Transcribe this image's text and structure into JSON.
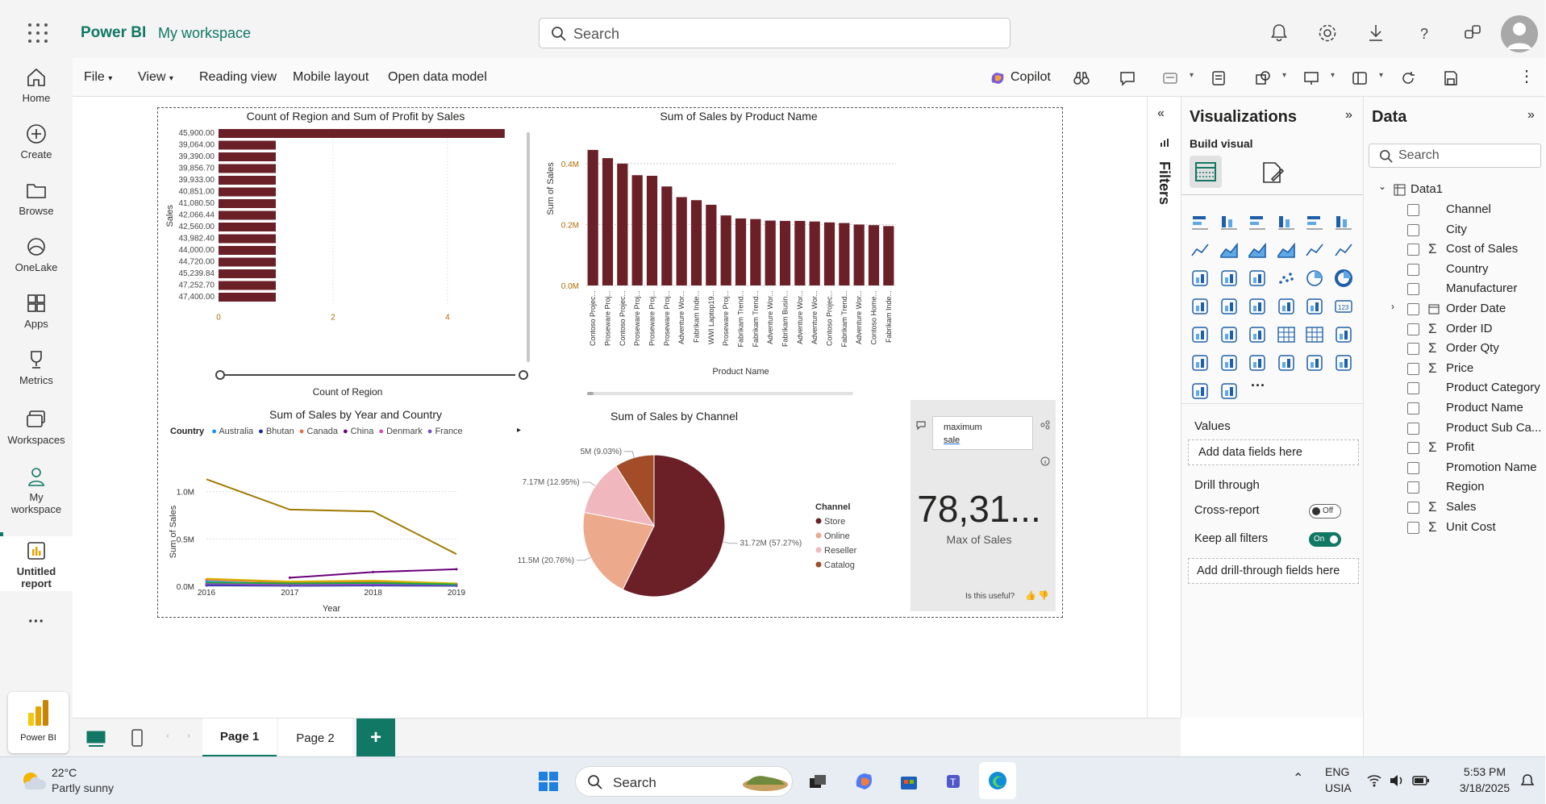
{
  "header": {
    "brand": "Power BI",
    "workspace": "My workspace",
    "search_placeholder": "Search"
  },
  "nav": [
    {
      "label": "Home",
      "icon": "home-icon"
    },
    {
      "label": "Create",
      "icon": "plus-circle-icon"
    },
    {
      "label": "Browse",
      "icon": "folder-icon"
    },
    {
      "label": "OneLake",
      "icon": "onelake-icon"
    },
    {
      "label": "Apps",
      "icon": "apps-icon"
    },
    {
      "label": "Metrics",
      "icon": "trophy-icon"
    },
    {
      "label": "Workspaces",
      "icon": "workspaces-icon"
    },
    {
      "label_line1": "My",
      "label_line2": "workspace",
      "icon": "person-icon"
    },
    {
      "label_line1": "Untitled",
      "label_line2": "report",
      "icon": "report-icon"
    }
  ],
  "nav_more": "···",
  "pbi_tile_label": "Power BI",
  "ribbon": {
    "file": "File",
    "view": "View",
    "reading": "Reading view",
    "mobile": "Mobile layout",
    "open_model": "Open data model",
    "copilot": "Copilot"
  },
  "charts": {
    "bar_region": {
      "title": "Count of Region and Sum of Profit by Sales",
      "xlabel": "Count of Region",
      "ylabel": "Sales",
      "x_ticks": [
        "0",
        "2",
        "4"
      ],
      "categories": [
        "45,900.00",
        "39,064.00",
        "39,390.00",
        "39,856.70",
        "39,933.00",
        "40,851.00",
        "41,080.50",
        "42,066.44",
        "42,560.00",
        "43,982.40",
        "44,000.00",
        "44,720.00",
        "45,239.84",
        "47,252.70",
        "47,400.00"
      ]
    },
    "product": {
      "title": "Sum of Sales by Product Name",
      "xlabel": "Product Name",
      "ylabel": "Sum of Sales",
      "y_ticks": [
        "0.4M",
        "0.2M",
        "0.0M"
      ],
      "categories": [
        "Contoso Projec...",
        "Proseware Proj...",
        "Contoso Projec...",
        "Proseware Proj...",
        "Proseware Proj...",
        "Proseware Proj...",
        "Adventure Wor...",
        "Fabrikam Inde...",
        "WWI Laptop19...",
        "Proseware Proj...",
        "Fabrikam Trend...",
        "Fabrikam Trend...",
        "Adventure Wor...",
        "Fabrikam Busin...",
        "Adventure Wor...",
        "Adventure Wor...",
        "Contoso Projec...",
        "Fabrikam Trend...",
        "Adventure Wor...",
        "Contoso Home...",
        "Fabrikam Inde..."
      ]
    },
    "line": {
      "title": "Sum of Sales by Year and Country",
      "xlabel": "Year",
      "ylabel": "Sum of Sales",
      "legend_title": "Country",
      "legend": [
        "Australia",
        "Bhutan",
        "Canada",
        "China",
        "Denmark",
        "France"
      ],
      "x_ticks": [
        "2016",
        "2017",
        "2018",
        "2019"
      ],
      "y_ticks": [
        "1.0M",
        "0.5M",
        "0.0M"
      ]
    },
    "pie": {
      "title": "Sum of Sales by Channel",
      "legend_title": "Channel",
      "legend": [
        "Store",
        "Online",
        "Reseller",
        "Catalog"
      ],
      "labels": [
        "5M (9.03%)",
        "7.17M (12.95%)",
        "11.5M (20.76%)",
        "31.72M (57.27%)"
      ]
    },
    "card": {
      "value": "78,31...",
      "label": "Max of Sales",
      "query_line1": "maximum",
      "query_line2": "sale",
      "useful": "Is this useful?"
    }
  },
  "chart_data": [
    {
      "type": "bar",
      "title": "Count of Region and Sum of Profit by Sales",
      "xlabel": "Count of Region",
      "ylabel": "Sales",
      "categories": [
        "45,900.00",
        "39,064.00",
        "39,390.00",
        "39,856.70",
        "39,933.00",
        "40,851.00",
        "41,080.50",
        "42,066.44",
        "42,560.00",
        "43,982.40",
        "44,000.00",
        "44,720.00",
        "45,239.84",
        "47,252.70",
        "47,400.00"
      ],
      "values": [
        5,
        1,
        1,
        1,
        1,
        1,
        1,
        1,
        1,
        1,
        1,
        1,
        1,
        1,
        1
      ],
      "xlim": [
        0,
        5.2
      ]
    },
    {
      "type": "bar",
      "title": "Sum of Sales by Product Name",
      "xlabel": "Product Name",
      "ylabel": "Sum of Sales",
      "categories": [
        "Contoso Projec...",
        "Proseware Proj...",
        "Contoso Projec...",
        "Proseware Proj...",
        "Proseware Proj...",
        "Proseware Proj...",
        "Adventure Wor...",
        "Fabrikam Inde...",
        "WWI Laptop19...",
        "Proseware Proj...",
        "Fabrikam Trend...",
        "Fabrikam Trend...",
        "Adventure Wor...",
        "Fabrikam Busin...",
        "Adventure Wor...",
        "Adventure Wor...",
        "Contoso Projec...",
        "Fabrikam Trend...",
        "Adventure Wor...",
        "Contoso Home...",
        "Fabrikam Inde..."
      ],
      "values": [
        445000,
        418000,
        400000,
        362000,
        360000,
        325000,
        290000,
        280000,
        265000,
        230000,
        220000,
        218000,
        213000,
        212000,
        212000,
        210000,
        207000,
        205000,
        200000,
        198000,
        195000
      ],
      "ylim": [
        0,
        450000
      ]
    },
    {
      "type": "line",
      "title": "Sum of Sales by Year and Country",
      "xlabel": "Year",
      "ylabel": "Sum of Sales",
      "x": [
        2016,
        2017,
        2018,
        2019
      ],
      "ylim": [
        0,
        1150000
      ],
      "series": [
        {
          "name": "Australia",
          "color": "#118dff",
          "values": [
            50000,
            20000,
            40000,
            20000
          ]
        },
        {
          "name": "Bhutan",
          "color": "#12239e",
          "values": [
            10000,
            5000,
            8000,
            5000
          ]
        },
        {
          "name": "Canada",
          "color": "#e66c37",
          "values": [
            70000,
            40000,
            50000,
            25000
          ]
        },
        {
          "name": "China",
          "color": "#6b007b",
          "values": [
            null,
            90000,
            150000,
            180000
          ]
        },
        {
          "name": "Denmark",
          "color": "#e044a7",
          "values": [
            30000,
            15000,
            20000,
            15000
          ]
        },
        {
          "name": "France",
          "color": "#744ec2",
          "values": [
            20000,
            10000,
            15000,
            10000
          ]
        },
        {
          "color": "#a07800",
          "values": [
            1130000,
            810000,
            790000,
            340000
          ]
        },
        {
          "color": "#d9b300",
          "values": [
            80000,
            50000,
            60000,
            30000
          ]
        },
        {
          "color": "#1aab40",
          "values": [
            40000,
            30000,
            35000,
            20000
          ]
        }
      ]
    },
    {
      "type": "pie",
      "title": "Sum of Sales by Channel",
      "categories": [
        "Store",
        "Online",
        "Reseller",
        "Catalog"
      ],
      "values": [
        31.72,
        11.5,
        7.17,
        5
      ],
      "percents": [
        57.27,
        20.76,
        12.95,
        9.03
      ],
      "colors": [
        "#6b1f27",
        "#eda98b",
        "#f0b7be",
        "#a34d28"
      ]
    }
  ],
  "filters_label": "Filters",
  "viz": {
    "title": "Visualizations",
    "build": "Build visual",
    "values": "Values",
    "add_fields": "Add data fields here",
    "drill": "Drill through",
    "cross": "Cross-report",
    "cross_state": "Off",
    "keep": "Keep all filters",
    "keep_state": "On",
    "add_drill": "Add drill-through fields here",
    "more": "···"
  },
  "data": {
    "title": "Data",
    "search_placeholder": "Search",
    "table": "Data1",
    "fields": [
      {
        "name": "Channel",
        "sigma": ""
      },
      {
        "name": "City",
        "sigma": ""
      },
      {
        "name": "Cost of Sales",
        "sigma": "Σ"
      },
      {
        "name": "Country",
        "sigma": ""
      },
      {
        "name": "Manufacturer",
        "sigma": ""
      },
      {
        "name": "Order Date",
        "sigma": "cal"
      },
      {
        "name": "Order ID",
        "sigma": "Σ"
      },
      {
        "name": "Order Qty",
        "sigma": "Σ"
      },
      {
        "name": "Price",
        "sigma": "Σ"
      },
      {
        "name": "Product Category",
        "sigma": ""
      },
      {
        "name": "Product Name",
        "sigma": ""
      },
      {
        "name": "Product Sub Ca...",
        "sigma": ""
      },
      {
        "name": "Profit",
        "sigma": "Σ"
      },
      {
        "name": "Promotion Name",
        "sigma": ""
      },
      {
        "name": "Region",
        "sigma": ""
      },
      {
        "name": "Sales",
        "sigma": "Σ"
      },
      {
        "name": "Unit Cost",
        "sigma": "Σ"
      }
    ]
  },
  "pages": [
    "Page 1",
    "Page 2"
  ],
  "taskbar": {
    "temp": "22°C",
    "weather": "Partly sunny",
    "search": "Search",
    "lang1": "ENG",
    "lang2": "USIA",
    "time": "5:53 PM",
    "date": "3/18/2025"
  }
}
